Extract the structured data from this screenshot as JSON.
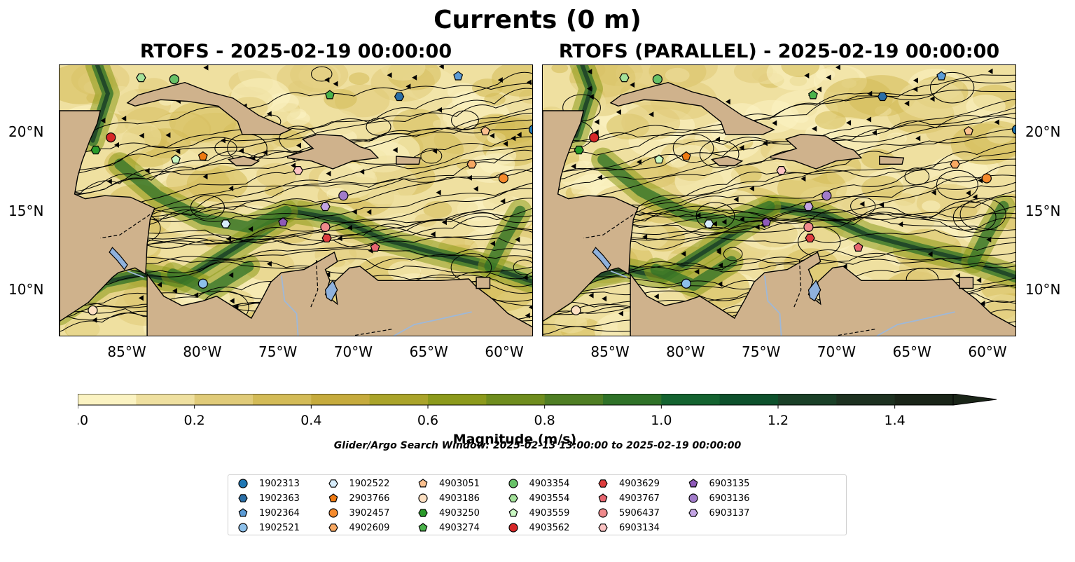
{
  "figure": {
    "title": "Currents (0 m)",
    "left_panel_title": "RTOFS - 2025-02-19 00:00:00",
    "right_panel_title": "RTOFS (PARALLEL) - 2025-02-19 00:00:00"
  },
  "map": {
    "type": "streamline current magnitude map",
    "lon_ticks": [
      "85°W",
      "80°W",
      "75°W",
      "70°W",
      "65°W",
      "60°W"
    ],
    "lat_ticks": [
      "20°N",
      "15°N",
      "10°N"
    ],
    "colors": {
      "land": "#cfb28c",
      "lake": "#8fb1dc",
      "river": "#9eb8d8"
    }
  },
  "colorbar": {
    "label": "Magnitude (m/s)",
    "ticks": [
      "0.0",
      "0.2",
      "0.4",
      "0.6",
      "0.8",
      "1.0",
      "1.2",
      "1.4"
    ],
    "range": [
      0,
      1.5
    ],
    "extend": "max",
    "colors": [
      "#fbf3c2",
      "#efe0a0",
      "#e0cb79",
      "#d3bb57",
      "#c6ab3d",
      "#aaa42a",
      "#8c9a1c",
      "#6f8d1e",
      "#4f7e24",
      "#2f7228",
      "#146330",
      "#0d512c",
      "#1a4027",
      "#1d3120",
      "#1a2518"
    ]
  },
  "search_window": "Glider/Argo Search Window: 2025-02-13 13:00:00 to 2025-02-19 00:00:00",
  "legend": [
    {
      "id": "1902313",
      "color": "#1f77b4",
      "marker": "circle"
    },
    {
      "id": "1902363",
      "color": "#2a6ea6",
      "marker": "hexagon"
    },
    {
      "id": "1902364",
      "color": "#5b9bd5",
      "marker": "pentagon"
    },
    {
      "id": "1902521",
      "color": "#8dc0ea",
      "marker": "circle"
    },
    {
      "id": "1902522",
      "color": "#d6ecfb",
      "marker": "hexagon"
    },
    {
      "id": "2903766",
      "color": "#ef7a12",
      "marker": "pentagon"
    },
    {
      "id": "3902457",
      "color": "#f58a2c",
      "marker": "circle"
    },
    {
      "id": "4902609",
      "color": "#f7a862",
      "marker": "hexagon"
    },
    {
      "id": "4903051",
      "color": "#fbc08e",
      "marker": "pentagon"
    },
    {
      "id": "4903186",
      "color": "#fde0c2",
      "marker": "circle"
    },
    {
      "id": "4903250",
      "color": "#2a9a2a",
      "marker": "hexagon"
    },
    {
      "id": "4903274",
      "color": "#4bb34b",
      "marker": "pentagon"
    },
    {
      "id": "4903354",
      "color": "#67c167",
      "marker": "circle"
    },
    {
      "id": "4903554",
      "color": "#a4e29a",
      "marker": "hexagon"
    },
    {
      "id": "4903559",
      "color": "#c9f7c2",
      "marker": "pentagon"
    },
    {
      "id": "4903562",
      "color": "#d62728",
      "marker": "circle"
    },
    {
      "id": "4903629",
      "color": "#de3d3e",
      "marker": "hexagon"
    },
    {
      "id": "4903767",
      "color": "#e76670",
      "marker": "pentagon"
    },
    {
      "id": "5906437",
      "color": "#f08a8c",
      "marker": "circle"
    },
    {
      "id": "6903134",
      "color": "#fbc2c2",
      "marker": "hexagon"
    },
    {
      "id": "6903135",
      "color": "#8e5ab8",
      "marker": "pentagon"
    },
    {
      "id": "6903136",
      "color": "#a17bc9",
      "marker": "circle"
    },
    {
      "id": "6903137",
      "color": "#c3a4e3",
      "marker": "hexagon"
    }
  ],
  "floats": [
    {
      "id": "1902313",
      "lon": -58.1,
      "lat": 20.2
    },
    {
      "id": "1902363",
      "lon": -67.0,
      "lat": 22.3
    },
    {
      "id": "1902364",
      "lon": -63.1,
      "lat": 23.6
    },
    {
      "id": "1902521",
      "lon": -80.0,
      "lat": 10.4
    },
    {
      "id": "1902522",
      "lon": -78.5,
      "lat": 14.2
    },
    {
      "id": "2903766",
      "lon": -80.0,
      "lat": 18.5
    },
    {
      "id": "3902457",
      "lon": -60.1,
      "lat": 17.1
    },
    {
      "id": "4902609",
      "lon": -62.2,
      "lat": 18.0
    },
    {
      "id": "4903051",
      "lon": -61.3,
      "lat": 20.1
    },
    {
      "id": "4903186",
      "lon": -87.3,
      "lat": 8.7
    },
    {
      "id": "4903250",
      "lon": -87.1,
      "lat": 18.9
    },
    {
      "id": "4903274",
      "lon": -71.6,
      "lat": 22.4
    },
    {
      "id": "4903354",
      "lon": -81.9,
      "lat": 23.4
    },
    {
      "id": "4903554",
      "lon": -84.1,
      "lat": 23.5
    },
    {
      "id": "4903559",
      "lon": -81.8,
      "lat": 18.3
    },
    {
      "id": "4903562",
      "lon": -86.1,
      "lat": 19.7
    },
    {
      "id": "4903629",
      "lon": -71.8,
      "lat": 13.3
    },
    {
      "id": "4903767",
      "lon": -68.6,
      "lat": 12.7
    },
    {
      "id": "5906437",
      "lon": -71.9,
      "lat": 14.0
    },
    {
      "id": "6903134",
      "lon": -73.7,
      "lat": 17.6
    },
    {
      "id": "6903135",
      "lon": -74.7,
      "lat": 14.3
    },
    {
      "id": "6903136",
      "lon": -70.7,
      "lat": 16.0
    },
    {
      "id": "6903137",
      "lon": -71.9,
      "lat": 15.3
    }
  ]
}
